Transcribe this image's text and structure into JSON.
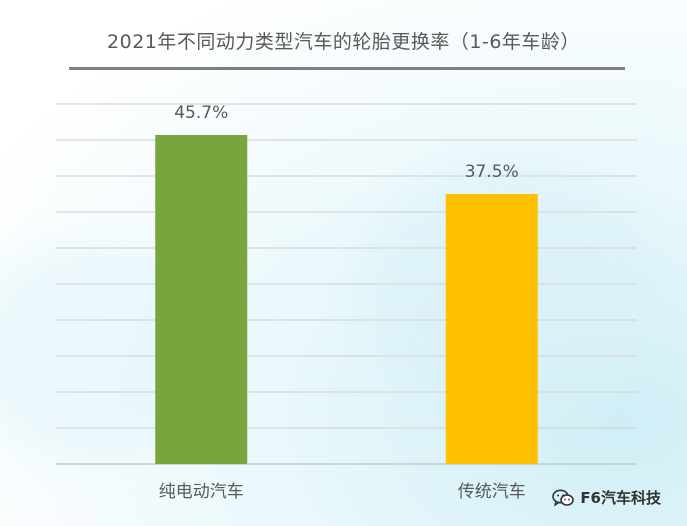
{
  "chart_data": {
    "type": "bar",
    "title": "2021年不同动力类型汽车的轮胎更换率（1-6年车龄）",
    "categories": [
      "纯电动汽车",
      "传统汽车"
    ],
    "values": [
      45.7,
      37.5
    ],
    "data_labels": [
      "45.7%",
      "37.5%"
    ],
    "colors": [
      "#78a53e",
      "#ffc000"
    ],
    "xlabel": "",
    "ylabel": "",
    "ylim": [
      0,
      50
    ],
    "grid": true,
    "legend": "none"
  },
  "watermark": {
    "icon": "wechat-icon",
    "text": "F6汽车科技"
  }
}
